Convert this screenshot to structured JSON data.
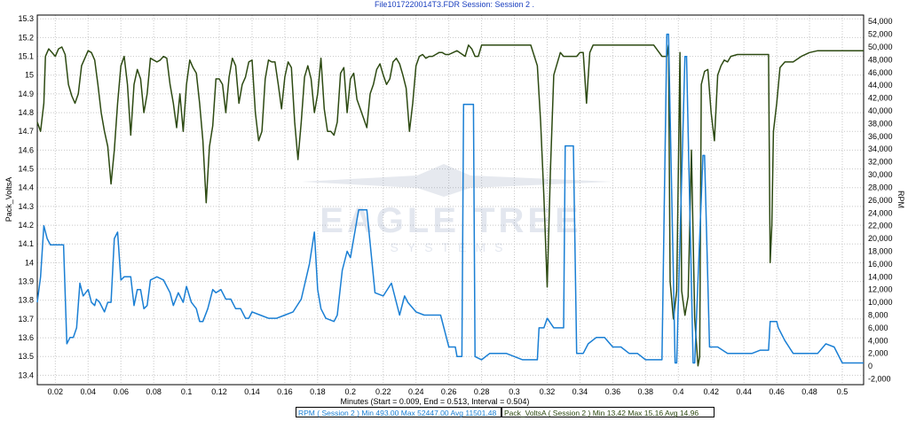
{
  "chart_data": {
    "type": "line",
    "title": "File1017220014T3.FDR   Session: Session 2 .",
    "xlabel": "Minutes (Start = 0.009,  End = 0.513, Interval = 0.504)",
    "ylabel_left": "Pack_VoltsA",
    "ylabel_right": "RPM",
    "xlim": [
      0.009,
      0.513
    ],
    "ylim_left": [
      13.35,
      15.32
    ],
    "ylim_right": [
      -2900,
      55000
    ],
    "x_ticks": [
      "0.02",
      "0.04",
      "0.06",
      "0.08",
      "0.1",
      "0.12",
      "0.14",
      "0.16",
      "0.18",
      "0.2",
      "0.22",
      "0.24",
      "0.26",
      "0.28",
      "0.3",
      "0.32",
      "0.34",
      "0.36",
      "0.38",
      "0.4",
      "0.42",
      "0.44",
      "0.46",
      "0.48",
      "0.5"
    ],
    "y_ticks_left": [
      "13.4",
      "13.5",
      "13.6",
      "13.7",
      "13.8",
      "13.9",
      "14",
      "14.1",
      "14.2",
      "14.3",
      "14.4",
      "14.5",
      "14.6",
      "14.7",
      "14.8",
      "14.9",
      "15",
      "15.1",
      "15.2",
      "15.3"
    ],
    "y_ticks_right": [
      "-2,000",
      "0",
      "2,000",
      "4,000",
      "6,000",
      "8,000",
      "10,000",
      "12,000",
      "14,000",
      "16,000",
      "18,000",
      "20,000",
      "22,000",
      "24,000",
      "26,000",
      "28,000",
      "30,000",
      "32,000",
      "34,000",
      "36,000",
      "38,000",
      "40,000",
      "42,000",
      "44,000",
      "46,000",
      "48,000",
      "50,000",
      "52,000",
      "54,000"
    ],
    "grid": true,
    "series": [
      {
        "name": "Pack_VoltsA ( Session 2 )",
        "axis": "left",
        "color": "#2d4a12",
        "x": [
          0.009,
          0.011,
          0.013,
          0.014,
          0.016,
          0.018,
          0.02,
          0.022,
          0.024,
          0.026,
          0.028,
          0.03,
          0.032,
          0.034,
          0.036,
          0.038,
          0.04,
          0.042,
          0.044,
          0.046,
          0.048,
          0.05,
          0.052,
          0.054,
          0.056,
          0.058,
          0.06,
          0.062,
          0.064,
          0.066,
          0.068,
          0.07,
          0.072,
          0.074,
          0.076,
          0.078,
          0.08,
          0.082,
          0.084,
          0.086,
          0.088,
          0.09,
          0.092,
          0.094,
          0.096,
          0.098,
          0.1,
          0.102,
          0.104,
          0.106,
          0.108,
          0.11,
          0.112,
          0.114,
          0.116,
          0.118,
          0.12,
          0.122,
          0.124,
          0.126,
          0.128,
          0.13,
          0.132,
          0.134,
          0.136,
          0.138,
          0.14,
          0.142,
          0.144,
          0.146,
          0.148,
          0.15,
          0.152,
          0.154,
          0.156,
          0.158,
          0.16,
          0.162,
          0.164,
          0.166,
          0.168,
          0.17,
          0.172,
          0.174,
          0.176,
          0.178,
          0.18,
          0.182,
          0.184,
          0.186,
          0.188,
          0.19,
          0.192,
          0.194,
          0.196,
          0.198,
          0.2,
          0.202,
          0.204,
          0.206,
          0.208,
          0.21,
          0.212,
          0.214,
          0.216,
          0.218,
          0.22,
          0.222,
          0.224,
          0.226,
          0.228,
          0.23,
          0.232,
          0.234,
          0.236,
          0.238,
          0.24,
          0.242,
          0.244,
          0.246,
          0.248,
          0.25,
          0.252,
          0.254,
          0.256,
          0.258,
          0.26,
          0.265,
          0.27,
          0.272,
          0.274,
          0.276,
          0.278,
          0.28,
          0.285,
          0.29,
          0.295,
          0.3,
          0.305,
          0.31,
          0.314,
          0.316,
          0.318,
          0.32,
          0.322,
          0.324,
          0.328,
          0.33,
          0.333,
          0.336,
          0.338,
          0.34,
          0.342,
          0.344,
          0.346,
          0.348,
          0.35,
          0.355,
          0.36,
          0.365,
          0.37,
          0.375,
          0.38,
          0.385,
          0.39,
          0.393,
          0.394,
          0.395,
          0.397,
          0.399,
          0.401,
          0.402,
          0.404,
          0.406,
          0.408,
          0.41,
          0.412,
          0.413,
          0.414,
          0.416,
          0.418,
          0.42,
          0.422,
          0.424,
          0.426,
          0.428,
          0.43,
          0.432,
          0.436,
          0.44,
          0.445,
          0.45,
          0.455,
          0.456,
          0.457,
          0.458,
          0.46,
          0.462,
          0.465,
          0.47,
          0.475,
          0.48,
          0.485,
          0.49,
          0.495,
          0.5,
          0.505,
          0.513
        ],
        "values": [
          14.75,
          14.7,
          14.85,
          15.1,
          15.14,
          15.12,
          15.1,
          15.14,
          15.15,
          15.11,
          14.95,
          14.89,
          14.85,
          14.9,
          15.05,
          15.09,
          15.13,
          15.12,
          15.08,
          14.95,
          14.8,
          14.7,
          14.62,
          14.42,
          14.6,
          14.85,
          15.05,
          15.1,
          14.95,
          14.68,
          14.95,
          15.03,
          14.98,
          14.8,
          14.9,
          15.09,
          15.08,
          15.07,
          15.08,
          15.1,
          15.09,
          14.95,
          14.85,
          14.72,
          14.9,
          14.7,
          14.95,
          15.08,
          15.04,
          15.01,
          14.85,
          14.65,
          14.32,
          14.62,
          14.73,
          14.98,
          14.98,
          14.95,
          14.8,
          14.99,
          15.09,
          15.05,
          14.85,
          14.95,
          14.99,
          15.07,
          15.08,
          14.8,
          14.65,
          14.7,
          14.98,
          15.08,
          15.07,
          15.07,
          14.95,
          14.82,
          14.99,
          15.07,
          15.04,
          14.75,
          14.55,
          14.75,
          14.99,
          15.05,
          14.98,
          14.8,
          14.9,
          15.09,
          14.82,
          14.7,
          14.7,
          14.68,
          14.75,
          15.01,
          15.04,
          14.8,
          14.98,
          15.01,
          14.87,
          14.82,
          14.77,
          14.72,
          14.9,
          14.95,
          15.03,
          15.06,
          15.0,
          14.95,
          14.98,
          15.07,
          15.09,
          15.06,
          15.0,
          14.93,
          14.7,
          14.85,
          15.05,
          15.1,
          15.11,
          15.09,
          15.1,
          15.1,
          15.11,
          15.12,
          15.12,
          15.11,
          15.11,
          15.13,
          15.1,
          15.16,
          15.14,
          15.1,
          15.1,
          15.16,
          15.16,
          15.16,
          15.16,
          15.16,
          15.16,
          15.16,
          15.05,
          14.75,
          14.35,
          13.87,
          14.5,
          15.0,
          15.12,
          15.1,
          15.1,
          15.1,
          15.1,
          15.12,
          15.12,
          14.85,
          15.12,
          15.16,
          15.16,
          15.16,
          15.16,
          15.16,
          15.16,
          15.16,
          15.16,
          15.16,
          15.1,
          15.1,
          15.16,
          13.9,
          13.7,
          13.85,
          15.12,
          13.85,
          13.72,
          13.82,
          14.6,
          13.7,
          13.45,
          13.5,
          14.95,
          15.02,
          15.03,
          14.8,
          14.65,
          15.0,
          15.05,
          15.08,
          15.07,
          15.1,
          15.11,
          15.11,
          15.11,
          15.11,
          15.11,
          14.0,
          14.2,
          14.7,
          14.85,
          15.04,
          15.07,
          15.07,
          15.1,
          15.12,
          15.13,
          15.13,
          15.13,
          15.13,
          15.13,
          15.13
        ]
      },
      {
        "name": "RPM ( Session 2 )",
        "axis": "right",
        "color": "#1a7fd4",
        "x": [
          0.009,
          0.011,
          0.013,
          0.015,
          0.017,
          0.019,
          0.022,
          0.025,
          0.027,
          0.029,
          0.03,
          0.031,
          0.033,
          0.035,
          0.037,
          0.04,
          0.042,
          0.044,
          0.045,
          0.047,
          0.05,
          0.052,
          0.054,
          0.056,
          0.058,
          0.06,
          0.062,
          0.064,
          0.066,
          0.068,
          0.07,
          0.072,
          0.074,
          0.076,
          0.078,
          0.082,
          0.086,
          0.09,
          0.092,
          0.095,
          0.098,
          0.1,
          0.103,
          0.106,
          0.108,
          0.11,
          0.113,
          0.116,
          0.118,
          0.121,
          0.124,
          0.127,
          0.13,
          0.133,
          0.136,
          0.138,
          0.14,
          0.145,
          0.15,
          0.155,
          0.16,
          0.165,
          0.17,
          0.175,
          0.178,
          0.18,
          0.182,
          0.185,
          0.19,
          0.192,
          0.195,
          0.198,
          0.2,
          0.205,
          0.21,
          0.215,
          0.22,
          0.225,
          0.23,
          0.233,
          0.235,
          0.24,
          0.245,
          0.25,
          0.255,
          0.26,
          0.264,
          0.265,
          0.268,
          0.269,
          0.275,
          0.276,
          0.28,
          0.285,
          0.29,
          0.295,
          0.3,
          0.305,
          0.31,
          0.314,
          0.315,
          0.318,
          0.32,
          0.324,
          0.329,
          0.33,
          0.331,
          0.336,
          0.338,
          0.341,
          0.342,
          0.345,
          0.35,
          0.355,
          0.36,
          0.365,
          0.37,
          0.375,
          0.38,
          0.385,
          0.39,
          0.393,
          0.394,
          0.398,
          0.399,
          0.404,
          0.405,
          0.409,
          0.41,
          0.415,
          0.416,
          0.419,
          0.42,
          0.423,
          0.424,
          0.43,
          0.435,
          0.44,
          0.445,
          0.45,
          0.455,
          0.456,
          0.46,
          0.461,
          0.465,
          0.47,
          0.475,
          0.48,
          0.485,
          0.49,
          0.495,
          0.5,
          0.505,
          0.513
        ],
        "values": [
          10000,
          14000,
          22000,
          20000,
          19000,
          19000,
          19000,
          19000,
          3500,
          4500,
          4500,
          4500,
          6000,
          13000,
          11000,
          12000,
          10000,
          9500,
          10500,
          10000,
          8500,
          10000,
          10000,
          20000,
          21000,
          13500,
          14000,
          14000,
          14000,
          9500,
          12000,
          12000,
          9000,
          9500,
          13500,
          14000,
          13500,
          11500,
          9500,
          11500,
          10000,
          12500,
          10000,
          9000,
          7000,
          7000,
          9000,
          12000,
          11500,
          12000,
          10500,
          10500,
          9000,
          9000,
          7500,
          7500,
          8500,
          8000,
          7500,
          7500,
          8000,
          8500,
          10500,
          16000,
          21000,
          12000,
          9000,
          7500,
          7000,
          8000,
          15000,
          18000,
          17000,
          24500,
          24500,
          11500,
          11000,
          13000,
          8000,
          11000,
          10000,
          8500,
          8000,
          8000,
          8000,
          3000,
          3000,
          1500,
          1500,
          41000,
          41000,
          1500,
          1000,
          2000,
          2000,
          2000,
          1500,
          1000,
          1000,
          1000,
          6000,
          6000,
          7500,
          6000,
          6000,
          6000,
          34500,
          34500,
          2000,
          2000,
          2000,
          3500,
          4500,
          4500,
          3000,
          3000,
          2000,
          2000,
          1000,
          1000,
          1000,
          52000,
          52000,
          500,
          500,
          48500,
          48500,
          500,
          500,
          33000,
          33000,
          3000,
          3000,
          3000,
          3000,
          2000,
          2000,
          2000,
          2000,
          2500,
          2500,
          7000,
          7000,
          6000,
          4000,
          2000,
          2000,
          2000,
          2000,
          3500,
          3000,
          500,
          500,
          500
        ]
      }
    ],
    "legend": [
      "RPM ( Session 2 )  Min 493.00   Max 52447.00   Avg 11501.48",
      "Pack_VoltsA ( Session 2 )  Min 13.42   Max 15.16   Avg 14.96"
    ],
    "legend_placement": "bottom-center",
    "watermark": "EAGLE TREE SYSTEMS"
  }
}
